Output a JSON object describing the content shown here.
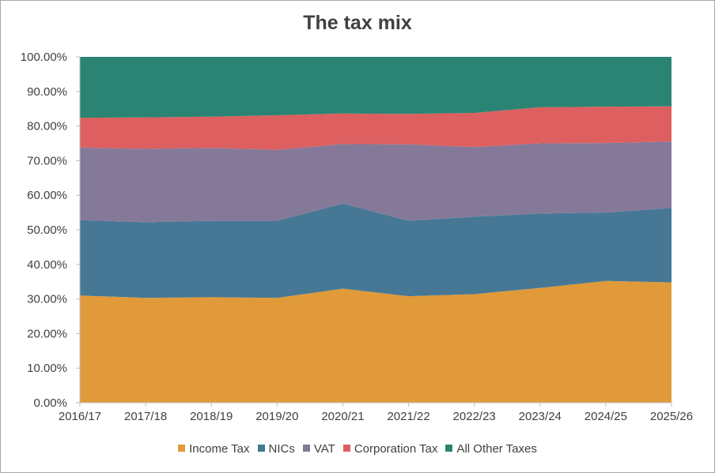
{
  "chart_data": {
    "type": "area",
    "stacked": "percent",
    "title": "The tax mix",
    "xlabel": "",
    "ylabel": "",
    "ylim": [
      0,
      100
    ],
    "ytick_labels": [
      "0.00%",
      "10.00%",
      "20.00%",
      "30.00%",
      "40.00%",
      "50.00%",
      "60.00%",
      "70.00%",
      "80.00%",
      "90.00%",
      "100.00%"
    ],
    "categories": [
      "2016/17",
      "2017/18",
      "2018/19",
      "2019/20",
      "2020/21",
      "2021/22",
      "2022/23",
      "2023/24",
      "2024/25",
      "2025/26"
    ],
    "legend_position": "bottom",
    "grid": false,
    "series": [
      {
        "name": "Income Tax",
        "color": "#E09A3A",
        "values": [
          31.0,
          30.3,
          30.5,
          30.3,
          33.0,
          30.8,
          31.4,
          33.2,
          35.2,
          34.8
        ]
      },
      {
        "name": "NICs",
        "color": "#467896",
        "values": [
          21.8,
          21.9,
          22.1,
          22.3,
          24.6,
          21.8,
          22.4,
          21.5,
          19.8,
          21.5
        ]
      },
      {
        "name": "VAT",
        "color": "#857999",
        "values": [
          21.0,
          21.2,
          21.1,
          20.5,
          17.2,
          22.1,
          20.1,
          20.3,
          20.1,
          19.2
        ]
      },
      {
        "name": "Corporation Tax",
        "color": "#DD5F5F",
        "values": [
          8.6,
          9.1,
          9.0,
          10.0,
          8.8,
          8.8,
          9.9,
          10.4,
          10.5,
          10.2
        ]
      },
      {
        "name": "All Other Taxes",
        "color": "#2B8473",
        "values": [
          17.6,
          17.5,
          17.3,
          16.9,
          16.4,
          16.5,
          16.2,
          14.6,
          14.4,
          14.3
        ]
      }
    ]
  }
}
